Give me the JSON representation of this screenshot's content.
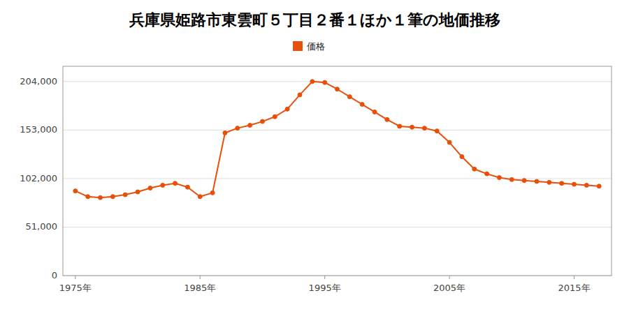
{
  "chart_data": {
    "type": "line",
    "title": "兵庫県姫路市東雲町５丁目２番１ほか１筆の地価推移",
    "x": [
      1975,
      1976,
      1977,
      1978,
      1979,
      1980,
      1981,
      1982,
      1983,
      1984,
      1985,
      1986,
      1987,
      1988,
      1989,
      1990,
      1991,
      1992,
      1993,
      1994,
      1995,
      1996,
      1997,
      1998,
      1999,
      2000,
      2001,
      2002,
      2003,
      2004,
      2005,
      2006,
      2007,
      2008,
      2009,
      2010,
      2011,
      2012,
      2013,
      2014,
      2015,
      2016,
      2017
    ],
    "series": [
      {
        "name": "価格",
        "color": "#e8500a",
        "marker": "circle",
        "values": [
          89000,
          83000,
          82000,
          83000,
          85000,
          88000,
          92000,
          95000,
          97000,
          93000,
          83000,
          87000,
          150000,
          155000,
          158000,
          162000,
          167000,
          175000,
          190000,
          204000,
          203000,
          196000,
          188000,
          180000,
          172000,
          164000,
          157000,
          156000,
          155000,
          152000,
          140000,
          125000,
          112000,
          107000,
          103000,
          101000,
          100000,
          99000,
          98000,
          97000,
          96000,
          95000,
          94000
        ]
      }
    ],
    "xlim": [
      1974,
      2018
    ],
    "xticks": [
      {
        "value": 1975,
        "label": "1975年"
      },
      {
        "value": 1985,
        "label": "1985年"
      },
      {
        "value": 1995,
        "label": "1995年"
      },
      {
        "value": 2005,
        "label": "2005年"
      },
      {
        "value": 2015,
        "label": "2015年"
      }
    ],
    "ylim": [
      0,
      220000
    ],
    "yticks": [
      0,
      {
        "value": 51000,
        "label": "51,000"
      },
      {
        "value": 102000,
        "label": "102,000"
      },
      {
        "value": 153000,
        "label": "153,000"
      },
      {
        "value": 204000,
        "label": "204,000"
      }
    ],
    "grid": true,
    "legend": "top"
  }
}
